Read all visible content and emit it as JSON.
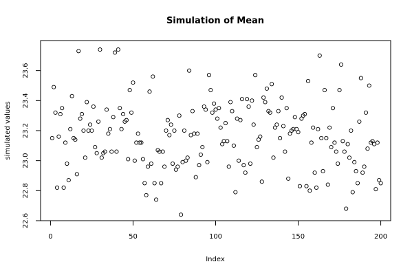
{
  "chart_data": {
    "type": "scatter",
    "title": "Simulation of Mean",
    "xlabel": "Index",
    "ylabel": "simulated values",
    "xlim": [
      -6,
      206
    ],
    "ylim": [
      22.6,
      23.8
    ],
    "x_ticks": [
      0,
      50,
      100,
      150,
      200
    ],
    "y_ticks": [
      22.6,
      22.8,
      23.0,
      23.2,
      23.4,
      23.6
    ],
    "x_tick_labels": [
      "0",
      "50",
      "100",
      "150",
      "200"
    ],
    "y_tick_labels": [
      "22.6",
      "22.8",
      "23.0",
      "23.2",
      "23.4",
      "23.6"
    ],
    "grid": false,
    "series": [
      {
        "x_start": 1,
        "values": [
          23.15,
          23.49,
          23.32,
          22.82,
          23.16,
          23.31,
          23.35,
          22.82,
          23.12,
          22.98,
          22.87,
          23.21,
          23.43,
          23.15,
          23.14,
          22.91,
          23.73,
          23.28,
          23.31,
          23.2,
          23.02,
          23.39,
          23.2,
          23.24,
          23.2,
          23.36,
          23.09,
          23.05,
          23.26,
          23.74,
          23.02,
          23.05,
          23.06,
          23.34,
          23.18,
          23.21,
          23.06,
          23.29,
          23.72,
          23.06,
          23.74,
          23.35,
          23.21,
          23.31,
          23.26,
          23.27,
          23.01,
          23.47,
          23.32,
          23.52,
          23.0,
          23.12,
          23.18,
          23.12,
          23.12,
          23.01,
          22.85,
          22.77,
          22.96,
          23.46,
          22.98,
          23.56,
          22.85,
          22.74,
          23.07,
          23.06,
          22.85,
          23.06,
          22.96,
          23.2,
          23.27,
          23.17,
          23.24,
          22.98,
          23.2,
          22.94,
          22.96,
          23.3,
          22.64,
          22.99,
          23.2,
          23.0,
          23.02,
          23.6,
          23.17,
          23.33,
          23.18,
          22.89,
          23.18,
          22.97,
          23.04,
          23.09,
          23.36,
          23.34,
          22.99,
          23.57,
          23.47,
          23.32,
          23.38,
          23.34,
          23.28,
          23.35,
          23.22,
          23.11,
          23.13,
          23.25,
          23.13,
          22.96,
          23.39,
          23.33,
          23.1,
          22.79,
          23.28,
          23.0,
          23.27,
          23.41,
          22.97,
          22.92,
          23.41,
          23.36,
          22.98,
          23.4,
          23.24,
          23.57,
          23.09,
          23.14,
          23.16,
          22.86,
          23.42,
          23.39,
          23.48,
          23.33,
          23.32,
          23.51,
          23.02,
          23.22,
          23.24,
          23.33,
          23.15,
          23.42,
          23.23,
          23.06,
          23.35,
          22.88,
          23.18,
          23.2,
          23.21,
          23.29,
          23.21,
          23.19,
          22.83,
          23.28,
          23.3,
          23.31,
          22.83,
          23.53,
          22.8,
          23.12,
          23.22,
          22.92,
          22.82,
          23.21,
          23.7,
          23.15,
          22.93,
          23.47,
          23.15,
          22.84,
          23.22,
          23.09,
          23.35,
          23.12,
          23.06,
          22.98,
          23.47,
          23.64,
          23.13,
          23.06,
          22.68,
          23.11,
          23.02,
          23.2,
          22.79,
          22.99,
          22.93,
          22.85,
          23.26,
          23.55,
          22.92,
          22.96,
          23.32,
          23.08,
          23.5,
          23.12,
          23.13,
          23.11,
          22.81,
          23.12,
          22.87,
          22.85
        ]
      }
    ]
  }
}
